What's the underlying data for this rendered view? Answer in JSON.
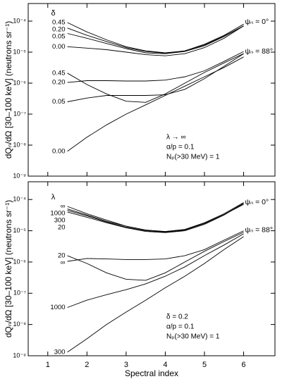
{
  "chart_data": [
    {
      "type": "line",
      "y_scale": "log",
      "color": "#000000",
      "ylabel": "dQₙ/dΩ [30–100 keV] (neutrons sr⁻¹)",
      "legend_title": "δ",
      "notes": [
        "λ → ∞",
        "α/p = 0.1",
        "Nₚ(>30 MeV) = 1"
      ],
      "group_labels": [
        "ψₙ = 0°",
        "ψₙ = 88°"
      ],
      "show_x_tick_labels": false,
      "x": [
        1.5,
        2,
        2.5,
        3,
        3.5,
        4,
        4.5,
        5,
        5.5,
        6
      ],
      "xlim": [
        0.5,
        6.8
      ],
      "xticks": [
        1,
        2,
        3,
        4,
        5,
        6
      ],
      "ylim": [
        1e-09,
        0.00037
      ],
      "yticks": [
        {
          "value": 1e-09,
          "label": "10⁻⁹"
        },
        {
          "value": 1e-08,
          "label": "10⁻⁸"
        },
        {
          "value": 1e-07,
          "label": "10⁻⁷"
        },
        {
          "value": 1e-06,
          "label": "10⁻⁶"
        },
        {
          "value": 1e-05,
          "label": "10⁻⁵"
        },
        {
          "value": 0.0001,
          "label": "10⁻⁴"
        }
      ],
      "series": [
        {
          "name": "0.45",
          "values": [
            9e-05,
            4.5e-05,
            2.5e-05,
            1.5e-05,
            1.1e-05,
            9.5e-06,
            1.1e-05,
            1.8e-05,
            3.5e-05,
            8e-05
          ]
        },
        {
          "name": "0.20",
          "values": [
            6e-05,
            3.5e-05,
            2.2e-05,
            1.4e-05,
            1.05e-05,
            9.3e-06,
            1.1e-05,
            1.7e-05,
            3.3e-05,
            7e-05
          ]
        },
        {
          "name": "0.05",
          "values": [
            4e-05,
            2.8e-05,
            1.9e-05,
            1.3e-05,
            9.5e-06,
            8.9e-06,
            1.05e-05,
            1.6e-05,
            3.2e-05,
            7e-05
          ]
        },
        {
          "name": "0.00",
          "values": [
            1.5e-05,
            1.35e-05,
            1.2e-05,
            1e-05,
            8.3e-06,
            7.6e-06,
            8.9e-06,
            1.4e-05,
            2.8e-05,
            7e-05
          ]
        },
        {
          "name": "0.45",
          "values": [
            2.1e-06,
            9e-07,
            4.5e-07,
            2.6e-07,
            2.4e-07,
            4.5e-07,
            1e-06,
            2.2e-06,
            4.5e-06,
            9e-06
          ]
        },
        {
          "name": "0.20",
          "values": [
            1.05e-06,
            1.2e-06,
            1.2e-06,
            1.17e-06,
            1.17e-06,
            1.25e-06,
            1.6e-06,
            2.5e-06,
            5e-06,
            1.05e-05
          ]
        },
        {
          "name": "0.05",
          "values": [
            2.5e-07,
            3.3e-07,
            4e-07,
            4e-07,
            4e-07,
            4.2e-07,
            6.3e-07,
            1.4e-06,
            3.5e-06,
            8.9e-06
          ]
        },
        {
          "name": "0.00",
          "values": [
            6.3e-09,
            1.8e-08,
            4.5e-08,
            1e-07,
            2e-07,
            4e-07,
            8e-07,
            1.6e-06,
            3.2e-06,
            7e-06
          ]
        }
      ]
    },
    {
      "type": "line",
      "y_scale": "log",
      "color": "#000000",
      "ylabel": "dQₙ/dΩ [30–100 keV] (neutrons sr⁻¹)",
      "xlabel": "Spectral index",
      "legend_title": "λ",
      "notes": [
        "δ = 0.2",
        "α/p = 0.1",
        "Nₚ(>30 MeV) = 1"
      ],
      "group_labels": [
        "ψₙ = 0°",
        "ψₙ = 88°"
      ],
      "show_x_tick_labels": true,
      "x": [
        1.5,
        2,
        2.5,
        3,
        3.5,
        4,
        4.5,
        5,
        5.5,
        6
      ],
      "xlim": [
        0.5,
        6.8
      ],
      "xticks": [
        1,
        2,
        3,
        4,
        5,
        6
      ],
      "ylim": [
        1e-09,
        0.00037
      ],
      "yticks": [
        {
          "value": 1e-09,
          "label": "10⁻⁹"
        },
        {
          "value": 1e-08,
          "label": "10⁻⁸"
        },
        {
          "value": 1e-07,
          "label": "10⁻⁷"
        },
        {
          "value": 1e-06,
          "label": "10⁻⁶"
        },
        {
          "value": 1e-05,
          "label": "10⁻⁵"
        },
        {
          "value": 0.0001,
          "label": "10⁻⁴"
        }
      ],
      "series": [
        {
          "name": "∞",
          "values": [
            6e-05,
            3.5e-05,
            2.2e-05,
            1.4e-05,
            1.05e-05,
            9.3e-06,
            1.1e-05,
            1.7e-05,
            3.3e-05,
            7e-05
          ]
        },
        {
          "name": "1000",
          "values": [
            5e-05,
            3.2e-05,
            2e-05,
            1.4e-05,
            1.05e-05,
            9.5e-06,
            1.1e-05,
            1.8e-05,
            3.5e-05,
            8e-05
          ]
        },
        {
          "name": "300",
          "values": [
            4.5e-05,
            3e-05,
            1.9e-05,
            1.3e-05,
            1e-05,
            9e-06,
            1.05e-05,
            1.7e-05,
            3.3e-05,
            7.5e-05
          ]
        },
        {
          "name": "20",
          "values": [
            4e-05,
            2.7e-05,
            1.8e-05,
            1.25e-05,
            9.5e-06,
            8.7e-06,
            1e-05,
            1.6e-05,
            3.2e-05,
            7.5e-05
          ]
        },
        {
          "name": "20",
          "values": [
            1.6e-06,
            9e-07,
            4.5e-07,
            2.8e-07,
            2.6e-07,
            4.5e-07,
            1e-06,
            2.2e-06,
            4.5e-06,
            9e-06
          ]
        },
        {
          "name": "∞",
          "values": [
            1.05e-06,
            1.3e-06,
            1.25e-06,
            1.2e-06,
            1.2e-06,
            1.25e-06,
            1.6e-06,
            2.5e-06,
            5e-06,
            1e-05
          ]
        },
        {
          "name": "1000",
          "values": [
            3.5e-08,
            6e-08,
            9e-08,
            1.3e-07,
            2e-07,
            3.5e-07,
            7e-07,
            1.6e-06,
            3.5e-06,
            8e-06
          ]
        },
        {
          "name": "300",
          "values": [
            1.3e-09,
            3.5e-09,
            1e-08,
            2.5e-08,
            6e-08,
            1.5e-07,
            3.5e-07,
            9e-07,
            2.5e-06,
            6.5e-06
          ]
        }
      ]
    }
  ]
}
